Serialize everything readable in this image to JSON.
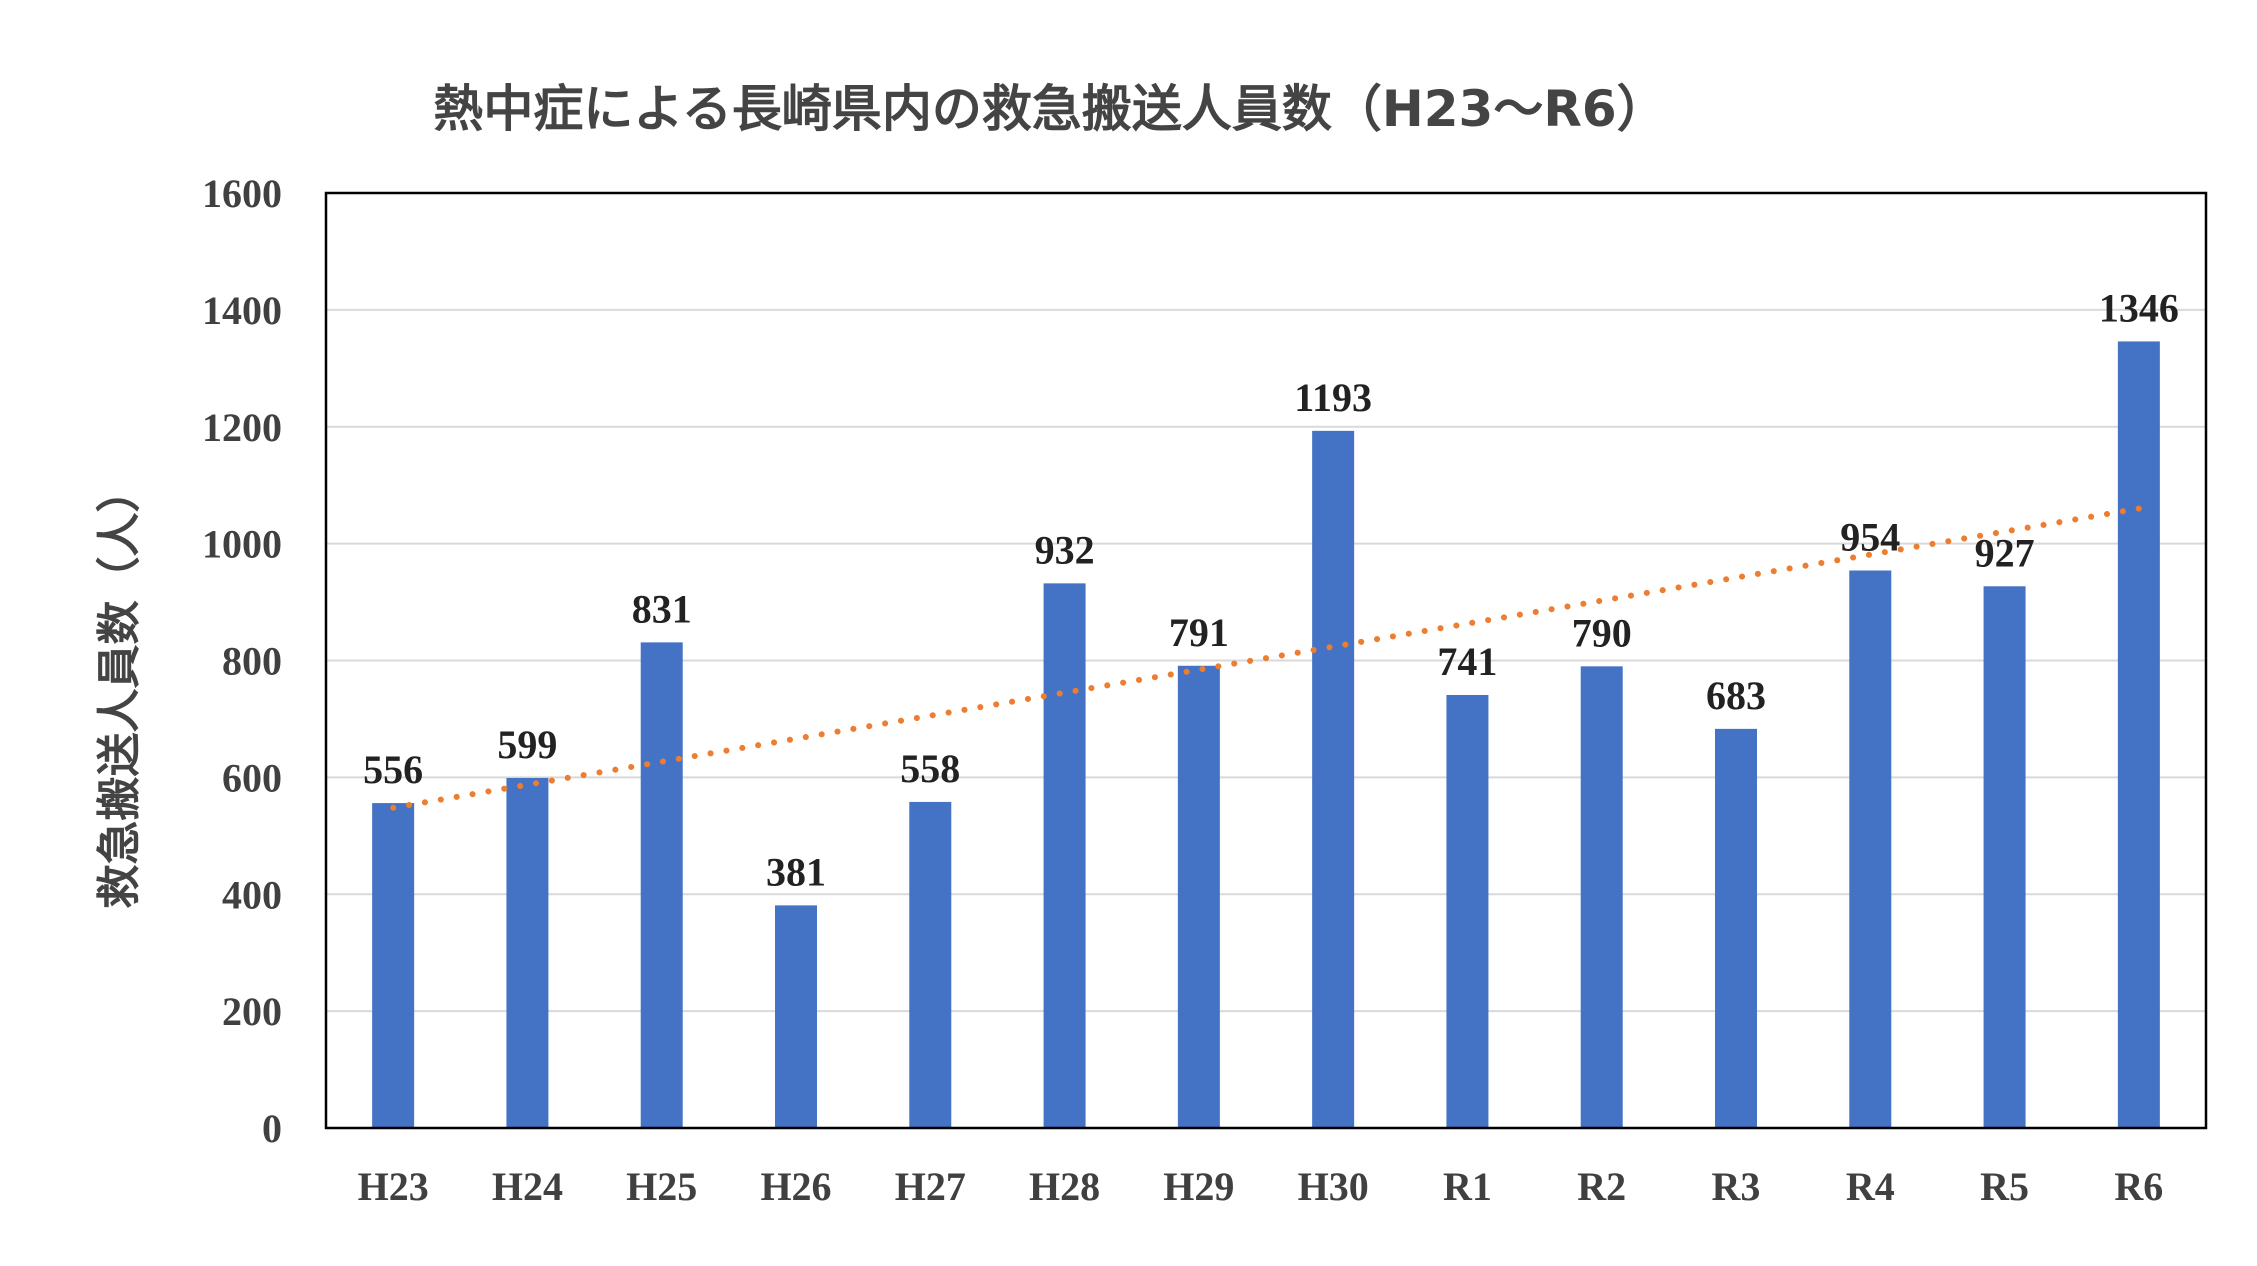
{
  "chart_data": {
    "type": "bar",
    "title": "熱中症による長崎県内の救急搬送人員数（H23〜R6）",
    "xlabel": "",
    "ylabel": "救急搬送人員数（人）",
    "categories": [
      "H23",
      "H24",
      "H25",
      "H26",
      "H27",
      "H28",
      "H29",
      "H30",
      "R1",
      "R2",
      "R3",
      "R4",
      "R5",
      "R6"
    ],
    "series": [
      {
        "values": [
          556,
          599,
          831,
          381,
          558,
          932,
          791,
          1193,
          741,
          790,
          683,
          954,
          927,
          1346
        ],
        "color": "#4472C4"
      }
    ],
    "trendline": {
      "type": "linear",
      "style": "dotted",
      "color": "#ED7D31",
      "start": 548,
      "end": 1060
    },
    "ylim": [
      0,
      1600
    ],
    "yticks": [
      "0",
      "200",
      "400",
      "600",
      "800",
      "1000",
      "1200",
      "1400",
      "1600"
    ],
    "grid": true,
    "legend": "none",
    "data_labels": true
  }
}
